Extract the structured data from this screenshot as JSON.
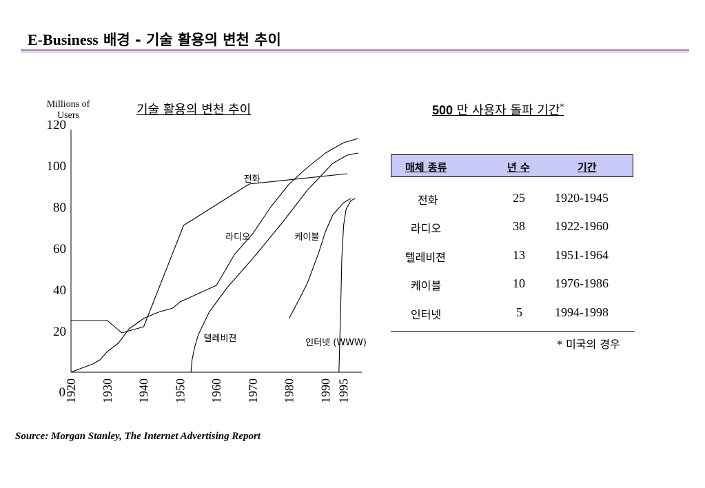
{
  "page": {
    "title_en": "E-Business",
    "title_ko": " 배경 - 기술 활용의 변천 추이",
    "source": "Source: Morgan Stanley, The Internet Advertising Report"
  },
  "chart_data": {
    "type": "line",
    "title": "기술 활용의 변천 추이",
    "ylabel": "Millions of Users",
    "xlabel": "",
    "ylim": [
      0,
      120
    ],
    "xlim": [
      1920,
      2000
    ],
    "y_ticks": [
      0,
      20,
      40,
      60,
      80,
      100,
      120
    ],
    "x_ticks": [
      1920,
      1930,
      1940,
      1950,
      1960,
      1970,
      1980,
      1990,
      1995
    ],
    "grid": false,
    "series": [
      {
        "name": "전화",
        "points": [
          [
            1920,
            25
          ],
          [
            1930,
            25
          ],
          [
            1934,
            19
          ],
          [
            1940,
            22
          ],
          [
            1951,
            71
          ],
          [
            1969,
            91
          ],
          [
            1996,
            96
          ]
        ]
      },
      {
        "name": "라디오",
        "points": [
          [
            1920,
            0
          ],
          [
            1923,
            2
          ],
          [
            1926,
            4
          ],
          [
            1928,
            6
          ],
          [
            1930,
            10
          ],
          [
            1933,
            14
          ],
          [
            1936,
            21
          ],
          [
            1940,
            26
          ],
          [
            1944,
            29
          ],
          [
            1948,
            31
          ],
          [
            1950,
            34
          ],
          [
            1955,
            38
          ],
          [
            1960,
            42
          ],
          [
            1965,
            57
          ],
          [
            1970,
            67
          ],
          [
            1975,
            80
          ],
          [
            1980,
            91
          ],
          [
            1985,
            99
          ],
          [
            1990,
            106
          ],
          [
            1995,
            111
          ],
          [
            1999,
            113
          ]
        ]
      },
      {
        "name": "텔레비젼",
        "points": [
          [
            1953,
            0
          ],
          [
            1953.3,
            6
          ],
          [
            1954,
            12
          ],
          [
            1955,
            18
          ],
          [
            1958,
            29
          ],
          [
            1963,
            41
          ],
          [
            1970,
            55
          ],
          [
            1978,
            72
          ],
          [
            1985,
            88
          ],
          [
            1992,
            101
          ],
          [
            1996,
            105
          ],
          [
            1999,
            106
          ]
        ]
      },
      {
        "name": "케이블",
        "points": [
          [
            1980,
            26
          ],
          [
            1983,
            36
          ],
          [
            1985,
            43
          ],
          [
            1988,
            57
          ],
          [
            1990,
            68
          ],
          [
            1992,
            76
          ],
          [
            1995,
            82
          ],
          [
            1997,
            84
          ]
        ]
      },
      {
        "name": "인터넷 (WWW)",
        "points": [
          [
            1993.7,
            0
          ],
          [
            1994.1,
            25
          ],
          [
            1994.5,
            55
          ],
          [
            1995,
            71
          ],
          [
            1995.7,
            79
          ],
          [
            1997,
            83
          ],
          [
            1998.2,
            84
          ]
        ]
      }
    ]
  },
  "table": {
    "title_num": "500",
    "title_text": " 만 사용자 돌파 기간",
    "title_mark": "*",
    "headers": [
      "매체 종류",
      "년 수",
      "기간"
    ],
    "rows": [
      [
        "전화",
        "25",
        "1920-1945"
      ],
      [
        "라디오",
        "38",
        "1922-1960"
      ],
      [
        "텔레비젼",
        "13",
        "1951-1964"
      ],
      [
        "케이블",
        "10",
        "1976-1986"
      ],
      [
        "인터넷",
        "5",
        "1994-1998"
      ]
    ],
    "footnote": "* 미국의 경우"
  }
}
